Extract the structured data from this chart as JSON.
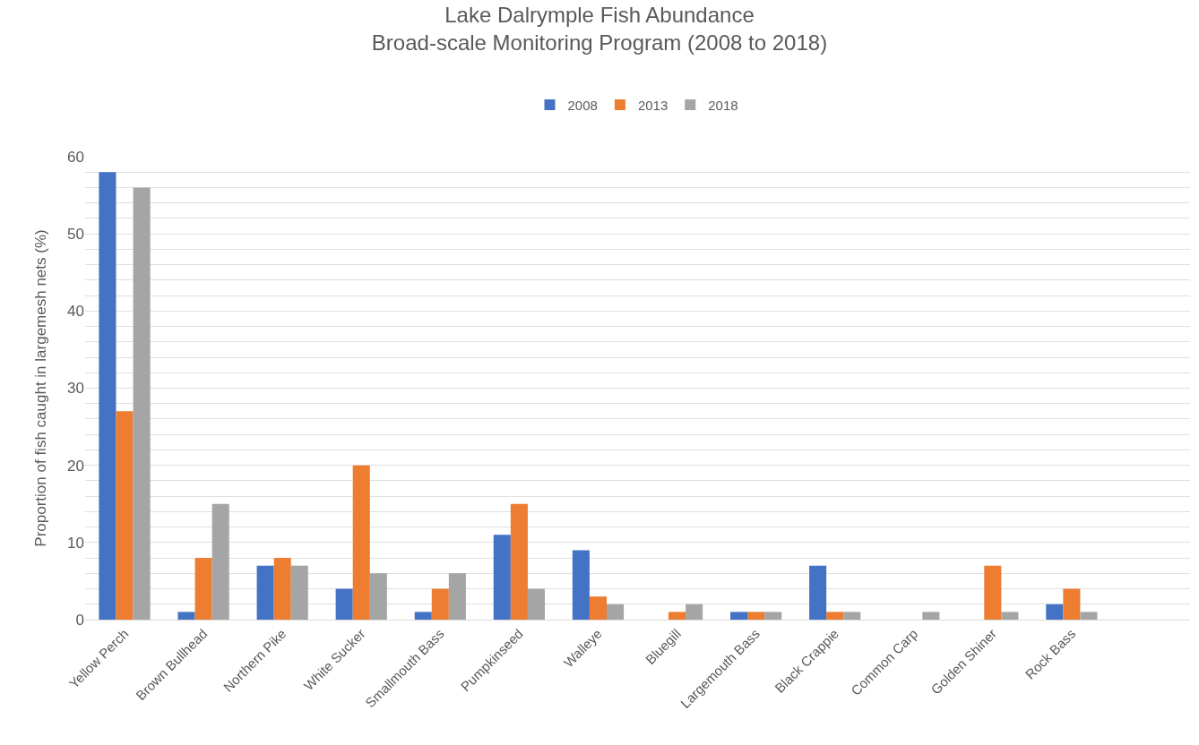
{
  "chart_data": {
    "type": "bar",
    "title": "Lake Dalrymple Fish Abundance",
    "subtitle": "Broad-scale Monitoring Program (2008 to 2018)",
    "ylabel": "Proportion of fish caught in largemesh nets (%)",
    "categories": [
      "Yellow Perch",
      "Brown Bullhead",
      "Northern Pike",
      "White Sucker",
      "Smallmouth Bass",
      "Pumpkinseed",
      "Walleye",
      "Bluegill",
      "Largemouth Bass",
      "Black Crappie",
      "Common Carp",
      "Golden Shiner",
      "Rock Bass",
      null
    ],
    "series": [
      {
        "name": "2008",
        "color": "#4472c4",
        "values": [
          58,
          1,
          7,
          4,
          1,
          11,
          9,
          null,
          1,
          7,
          null,
          null,
          2,
          null
        ]
      },
      {
        "name": "2013",
        "color": "#ed7d31",
        "values": [
          27,
          8,
          8,
          20,
          4,
          15,
          3,
          1,
          1,
          1,
          null,
          7,
          4,
          null
        ]
      },
      {
        "name": "2018",
        "color": "#a5a5a5",
        "values": [
          56,
          15,
          7,
          6,
          6,
          4,
          2,
          2,
          1,
          1,
          1,
          1,
          1,
          null
        ]
      }
    ],
    "ylim": [
      0,
      60
    ],
    "yticks": [
      0,
      {
        "value": 2,
        "label": null
      },
      {
        "value": 4,
        "label": null
      },
      {
        "value": 6,
        "label": null
      },
      {
        "value": 8,
        "label": null
      },
      10,
      {
        "value": 12,
        "label": null
      },
      {
        "value": 14,
        "label": null
      },
      {
        "value": 16,
        "label": null
      },
      {
        "value": 18,
        "label": null
      },
      20,
      {
        "value": 22,
        "label": null
      },
      {
        "value": 24,
        "label": null
      },
      {
        "value": 26,
        "label": null
      },
      {
        "value": 28,
        "label": null
      },
      30,
      {
        "value": 32,
        "label": null
      },
      {
        "value": 34,
        "label": null
      },
      {
        "value": 36,
        "label": null
      },
      {
        "value": 38,
        "label": null
      },
      40,
      {
        "value": 42,
        "label": null
      },
      {
        "value": 44,
        "label": null
      },
      {
        "value": 46,
        "label": null
      },
      {
        "value": 48,
        "label": null
      },
      50,
      {
        "value": 52,
        "label": null
      },
      {
        "value": 54,
        "label": null
      },
      {
        "value": 56,
        "label": null
      },
      {
        "value": 58,
        "label": null
      },
      60
    ],
    "grid": true,
    "legend": "top"
  }
}
